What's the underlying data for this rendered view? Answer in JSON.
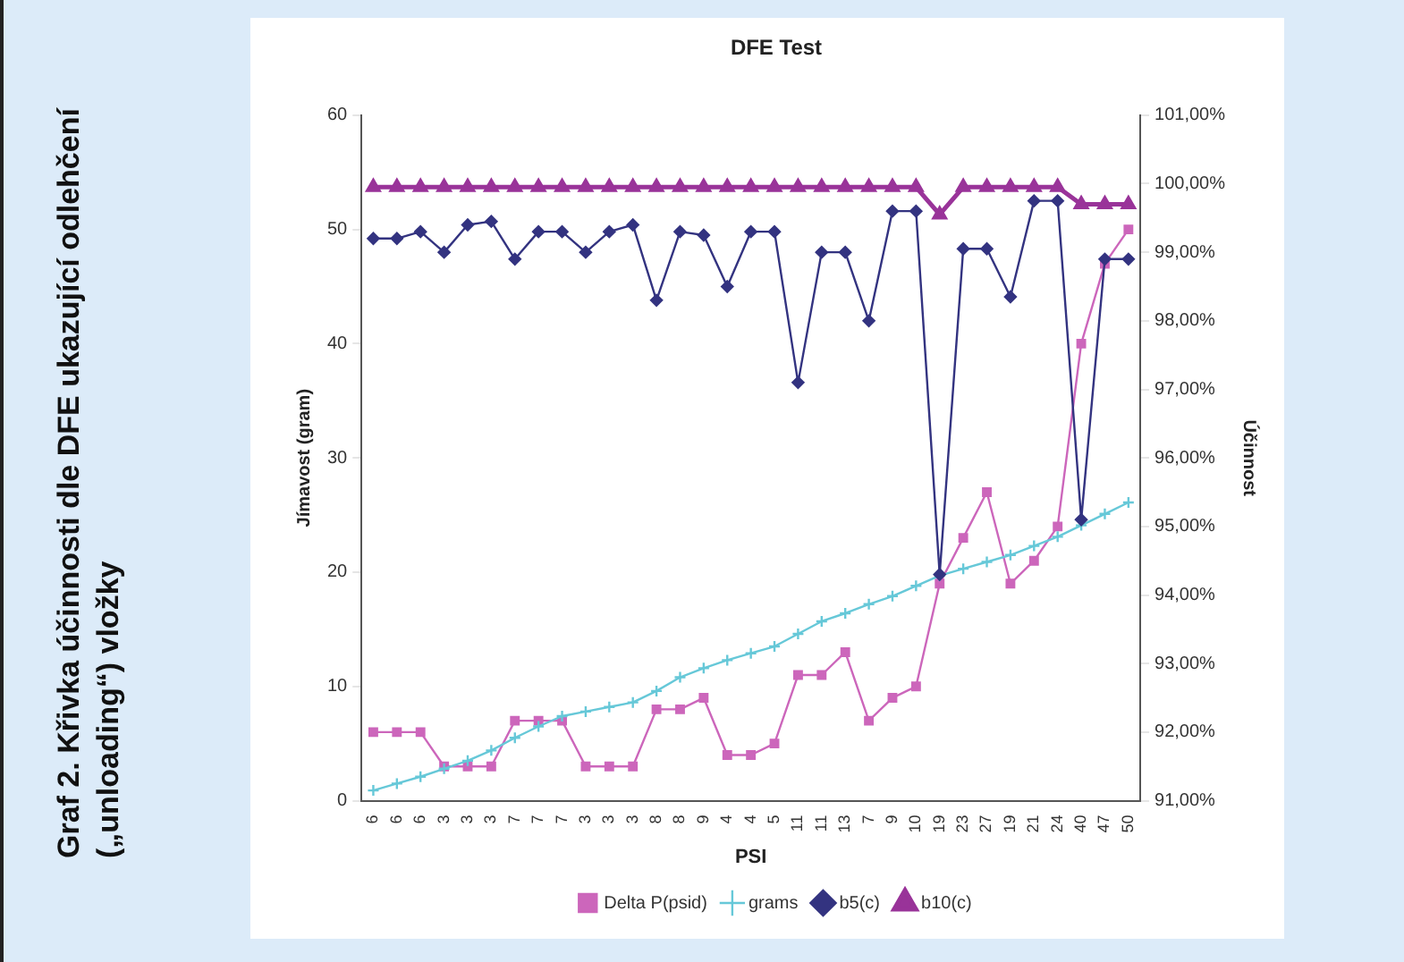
{
  "chart_data": {
    "type": "line",
    "title": "DFE Test",
    "xlabel": "PSI",
    "ylabel": "Jímavost (gram)",
    "y2label": "Účinnost",
    "annotations": [
      "Graf 2. Křivka účinnosti dle DFE ukazující odlehčení („unloading“) vložky"
    ],
    "categories": [
      "6",
      "6",
      "6",
      "3",
      "3",
      "3",
      "7",
      "7",
      "7",
      "3",
      "3",
      "3",
      "8",
      "8",
      "9",
      "4",
      "4",
      "5",
      "11",
      "11",
      "13",
      "7",
      "9",
      "10",
      "19",
      "23",
      "27",
      "19",
      "21",
      "24",
      "40",
      "47",
      "50"
    ],
    "ylim": [
      0,
      60
    ],
    "yticks": [
      0,
      10,
      20,
      30,
      40,
      50,
      60
    ],
    "y2lim": [
      91,
      101
    ],
    "y2ticks": [
      {
        "value": 91,
        "label": "91,00%"
      },
      {
        "value": 92,
        "label": "92,00%"
      },
      {
        "value": 93,
        "label": "93,00%"
      },
      {
        "value": 94,
        "label": "94,00%"
      },
      {
        "value": 95,
        "label": "95,00%"
      },
      {
        "value": 96,
        "label": "96,00%"
      },
      {
        "value": 97,
        "label": "97,00%"
      },
      {
        "value": 98,
        "label": "98,00%"
      },
      {
        "value": 99,
        "label": "99,00%"
      },
      {
        "value": 100,
        "label": "100,00%"
      },
      {
        "value": 101,
        "label": "101,00%"
      }
    ],
    "grid": false,
    "legend": "bottom",
    "series": [
      {
        "name": "Delta P(psid)",
        "color": "#cc66bb",
        "marker": "square",
        "values": [
          6,
          6,
          6,
          3,
          3,
          3,
          7,
          7,
          7,
          3,
          3,
          3,
          8,
          8,
          9,
          4,
          4,
          5,
          11,
          11,
          13,
          7,
          9,
          10,
          19,
          23,
          27,
          19,
          21,
          24,
          40,
          47,
          50
        ]
      },
      {
        "name": "grams",
        "color": "#66c8d8",
        "marker": "cross",
        "values": [
          0.9,
          1.5,
          2.1,
          2.8,
          3.5,
          4.4,
          5.5,
          6.5,
          7.4,
          7.8,
          8.2,
          8.6,
          9.6,
          10.8,
          11.6,
          12.3,
          12.9,
          13.5,
          14.6,
          15.7,
          16.4,
          17.2,
          17.9,
          18.8,
          19.7,
          20.3,
          20.9,
          21.5,
          22.3,
          23.1,
          24.1,
          25.1,
          26.1
        ]
      },
      {
        "name": "b5(c)",
        "color": "#333380",
        "marker": "diamond",
        "axis": "y2",
        "values": [
          99.2,
          99.2,
          99.3,
          99.0,
          99.4,
          99.45,
          98.9,
          99.3,
          99.3,
          99.0,
          99.3,
          99.4,
          98.3,
          99.3,
          99.25,
          98.5,
          99.3,
          99.3,
          97.1,
          99.0,
          99.0,
          98.0,
          99.6,
          99.6,
          94.3,
          99.05,
          99.05,
          98.35,
          99.75,
          99.75,
          95.1,
          98.9,
          98.9
        ]
      },
      {
        "name": "b10(c)",
        "color": "#993399",
        "marker": "triangle",
        "axis": "y2",
        "values": [
          99.95,
          99.95,
          99.95,
          99.95,
          99.95,
          99.95,
          99.95,
          99.95,
          99.95,
          99.95,
          99.95,
          99.95,
          99.95,
          99.95,
          99.95,
          99.95,
          99.95,
          99.95,
          99.95,
          99.95,
          99.95,
          99.95,
          99.95,
          99.95,
          99.55,
          99.95,
          99.95,
          99.95,
          99.95,
          99.95,
          99.7,
          99.7,
          99.7
        ]
      }
    ]
  }
}
